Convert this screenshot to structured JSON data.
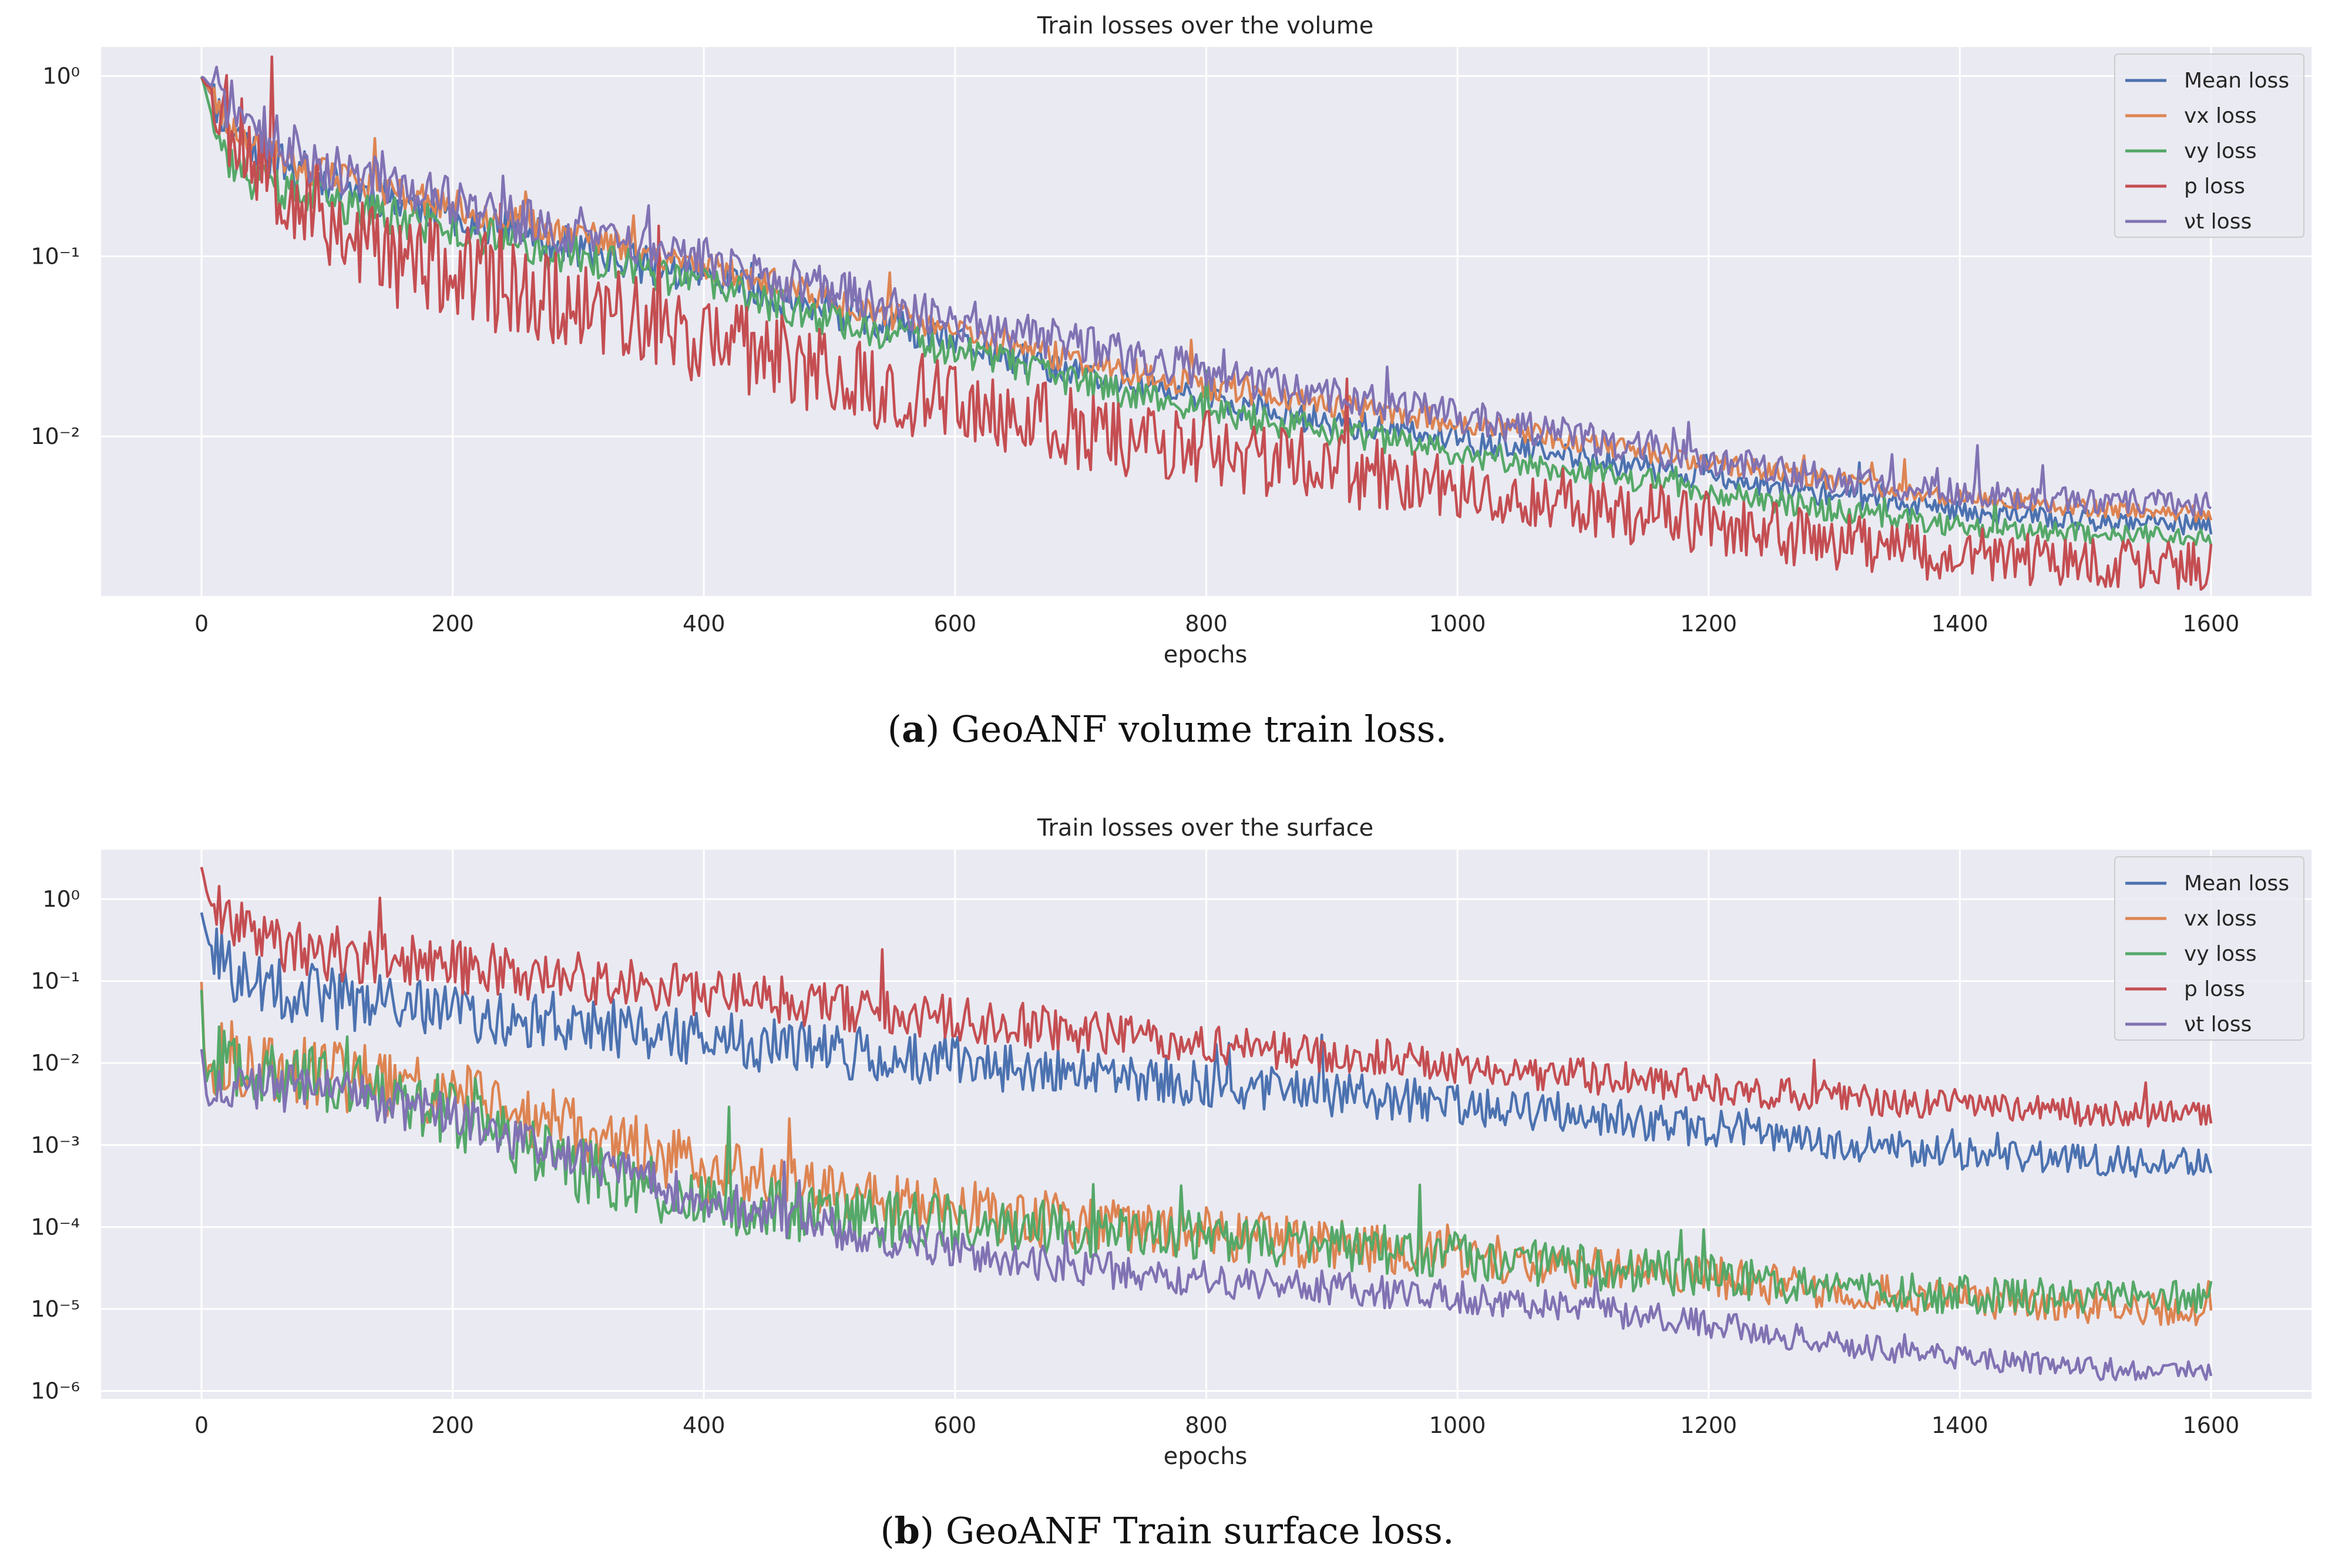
{
  "figure": {
    "panels": [
      {
        "caption_tag": "a",
        "caption_text": "GeoANF volume train loss."
      },
      {
        "caption_tag": "b",
        "caption_text": "GeoANF Train surface loss."
      }
    ]
  },
  "chart_data": [
    {
      "type": "line",
      "title": "Train losses over the volume",
      "xlabel": "epochs",
      "ylabel": "",
      "yscale": "log",
      "xlim": [
        -80,
        1680
      ],
      "ylim": [
        0.0013,
        1.45
      ],
      "xticks": [
        0,
        200,
        400,
        600,
        800,
        1000,
        1200,
        1400,
        1600
      ],
      "yticks": [
        {
          "value": 1,
          "label": "10⁰"
        },
        {
          "value": 0.1,
          "label": "10⁻¹"
        },
        {
          "value": 0.01,
          "label": "10⁻²"
        }
      ],
      "legend_position": "top-right",
      "series": [
        {
          "name": "Mean loss",
          "color": "#4c72b0",
          "noise": 0.12,
          "seed": 11,
          "x": [
            0,
            20,
            50,
            100,
            200,
            300,
            400,
            500,
            600,
            700,
            800,
            900,
            1000,
            1100,
            1200,
            1300,
            1400,
            1500,
            1600
          ],
          "y": [
            1.0,
            0.55,
            0.36,
            0.26,
            0.17,
            0.11,
            0.075,
            0.05,
            0.033,
            0.022,
            0.016,
            0.012,
            0.0095,
            0.0075,
            0.006,
            0.0047,
            0.0039,
            0.0034,
            0.0032
          ]
        },
        {
          "name": "vx loss",
          "color": "#dd8452",
          "noise": 0.1,
          "seed": 23,
          "x": [
            0,
            20,
            50,
            100,
            200,
            300,
            400,
            500,
            600,
            700,
            800,
            900,
            1000,
            1100,
            1200,
            1300,
            1400,
            1500,
            1600
          ],
          "y": [
            1.0,
            0.55,
            0.38,
            0.28,
            0.19,
            0.13,
            0.09,
            0.058,
            0.038,
            0.026,
            0.019,
            0.015,
            0.012,
            0.0093,
            0.0072,
            0.0057,
            0.0046,
            0.004,
            0.0037
          ]
        },
        {
          "name": "vy loss",
          "color": "#55a868",
          "noise": 0.12,
          "seed": 37,
          "x": [
            0,
            10,
            20,
            40,
            60,
            100,
            200,
            300,
            400,
            500,
            600,
            700,
            800,
            900,
            1000,
            1100,
            1200,
            1300,
            1400,
            1500,
            1600
          ],
          "y": [
            1.0,
            0.55,
            0.36,
            0.26,
            0.23,
            0.2,
            0.14,
            0.1,
            0.07,
            0.045,
            0.03,
            0.02,
            0.014,
            0.0105,
            0.0082,
            0.0064,
            0.005,
            0.0039,
            0.0032,
            0.0029,
            0.0028
          ]
        },
        {
          "name": "p loss",
          "color": "#c44e52",
          "noise": 0.3,
          "seed": 53,
          "x": [
            0,
            30,
            60,
            100,
            150,
            200,
            300,
            400,
            500,
            600,
            700,
            800,
            900,
            1000,
            1100,
            1200,
            1300,
            1400,
            1500,
            1600
          ],
          "y": [
            1.0,
            0.5,
            0.28,
            0.16,
            0.1,
            0.08,
            0.055,
            0.035,
            0.022,
            0.015,
            0.011,
            0.0085,
            0.0065,
            0.0052,
            0.0042,
            0.0033,
            0.0026,
            0.0022,
            0.002,
            0.0019
          ]
        },
        {
          "name": "νt loss",
          "color": "#8172b3",
          "noise": 0.15,
          "seed": 71,
          "x": [
            0,
            30,
            60,
            100,
            200,
            300,
            400,
            500,
            600,
            700,
            800,
            900,
            1000,
            1100,
            1200,
            1300,
            1400,
            1500,
            1600
          ],
          "y": [
            1.0,
            0.62,
            0.44,
            0.32,
            0.2,
            0.13,
            0.095,
            0.065,
            0.045,
            0.032,
            0.023,
            0.017,
            0.013,
            0.0098,
            0.0074,
            0.0058,
            0.0049,
            0.0044,
            0.0042
          ]
        }
      ]
    },
    {
      "type": "line",
      "title": "Train losses over the surface",
      "xlabel": "epochs",
      "ylabel": "",
      "yscale": "log",
      "xlim": [
        -80,
        1680
      ],
      "ylim": [
        8e-07,
        4.0
      ],
      "xticks": [
        0,
        200,
        400,
        600,
        800,
        1000,
        1200,
        1400,
        1600
      ],
      "yticks": [
        {
          "value": 1,
          "label": "10⁰"
        },
        {
          "value": 0.1,
          "label": "10⁻¹"
        },
        {
          "value": 0.01,
          "label": "10⁻²"
        },
        {
          "value": 0.001,
          "label": "10⁻³"
        },
        {
          "value": 0.0001,
          "label": "10⁻⁴"
        },
        {
          "value": 1e-05,
          "label": "10⁻⁵"
        },
        {
          "value": 1e-06,
          "label": "10⁻⁶"
        }
      ],
      "legend_position": "top-right",
      "series": [
        {
          "name": "Mean loss",
          "color": "#4c72b0",
          "noise": 0.4,
          "seed": 101,
          "x": [
            0,
            5,
            20,
            50,
            100,
            200,
            300,
            400,
            500,
            600,
            700,
            800,
            900,
            1000,
            1100,
            1200,
            1300,
            1400,
            1500,
            1600
          ],
          "y": [
            0.7,
            0.3,
            0.15,
            0.09,
            0.065,
            0.042,
            0.03,
            0.02,
            0.014,
            0.01,
            0.0075,
            0.0055,
            0.0042,
            0.0032,
            0.0024,
            0.0016,
            0.0011,
            0.0008,
            0.00065,
            0.0006
          ]
        },
        {
          "name": "vx loss",
          "color": "#dd8452",
          "noise": 0.45,
          "seed": 113,
          "x": [
            0,
            3,
            6,
            20,
            50,
            100,
            200,
            300,
            400,
            500,
            600,
            700,
            800,
            900,
            1000,
            1100,
            1200,
            1300,
            1400,
            1500,
            1600
          ],
          "y": [
            0.1,
            0.006,
            0.009,
            0.012,
            0.009,
            0.007,
            0.0045,
            0.0015,
            0.0005,
            0.00028,
            0.00017,
            0.00011,
            8.5e-05,
            6e-05,
            4.5e-05,
            3.3e-05,
            2.4e-05,
            1.7e-05,
            1.3e-05,
            1.1e-05,
            1e-05
          ]
        },
        {
          "name": "vy loss",
          "color": "#55a868",
          "noise": 0.45,
          "seed": 127,
          "x": [
            0,
            3,
            6,
            20,
            50,
            100,
            200,
            300,
            400,
            500,
            600,
            700,
            800,
            900,
            1000,
            1100,
            1200,
            1300,
            1400,
            1500,
            1600
          ],
          "y": [
            0.08,
            0.005,
            0.008,
            0.012,
            0.009,
            0.006,
            0.0025,
            0.0005,
            0.0002,
            0.00014,
            0.00011,
            9e-05,
            7.5e-05,
            6e-05,
            4.5e-05,
            3.3e-05,
            2.5e-05,
            1.8e-05,
            1.5e-05,
            1.4e-05,
            1.4e-05
          ]
        },
        {
          "name": "p loss",
          "color": "#c44e52",
          "noise": 0.35,
          "seed": 139,
          "x": [
            0,
            5,
            20,
            50,
            100,
            200,
            300,
            400,
            500,
            600,
            700,
            800,
            900,
            1000,
            1100,
            1200,
            1300,
            1400,
            1500,
            1600
          ],
          "y": [
            2.5,
            1.0,
            0.5,
            0.3,
            0.22,
            0.15,
            0.11,
            0.075,
            0.05,
            0.035,
            0.025,
            0.018,
            0.013,
            0.0095,
            0.007,
            0.005,
            0.0038,
            0.003,
            0.0025,
            0.0023
          ]
        },
        {
          "name": "νt loss",
          "color": "#8172b3",
          "noise": 0.3,
          "seed": 151,
          "x": [
            0,
            5,
            20,
            50,
            100,
            200,
            300,
            400,
            500,
            600,
            700,
            800,
            900,
            1000,
            1100,
            1200,
            1300,
            1400,
            1500,
            1600
          ],
          "y": [
            0.015,
            0.003,
            0.005,
            0.005,
            0.0045,
            0.0022,
            0.00065,
            0.00022,
            0.0001,
            5e-05,
            3.2e-05,
            2.3e-05,
            1.8e-05,
            1.4e-05,
            1e-05,
            6.5e-06,
            3.8e-06,
            2.6e-06,
            1.9e-06,
            1.8e-06
          ]
        }
      ]
    }
  ]
}
